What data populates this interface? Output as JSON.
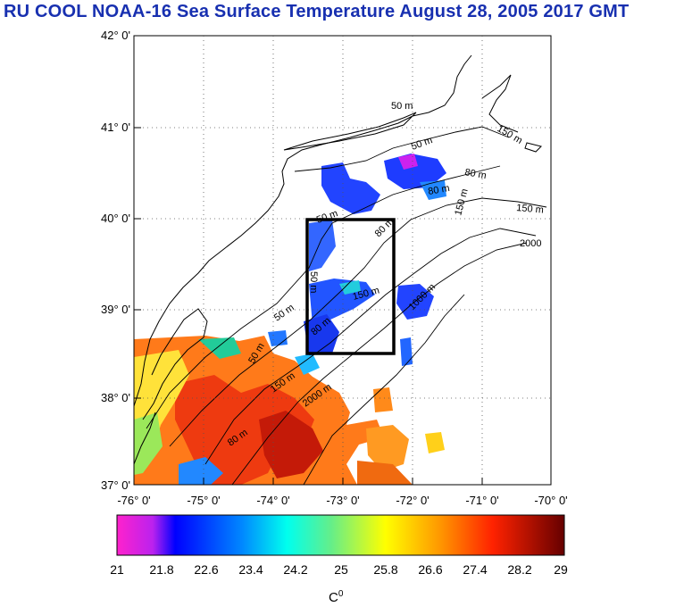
{
  "title": "RU COOL  NOAA-16 Sea Surface Temperature August 28, 2005 2017 GMT",
  "lat_labels": [
    "42° 0'",
    "41° 0'",
    "40° 0'",
    "39° 0'",
    "38° 0'",
    "37° 0'"
  ],
  "lon_labels": [
    "-76° 0'",
    "-75° 0'",
    "-74° 0'",
    "-73° 0'",
    "-72° 0'",
    "-71° 0'",
    "-70° 0'"
  ],
  "contour_labels": {
    "c50a": "50 m",
    "c50b": "50 m",
    "c80a": "80 m",
    "c80b": "80 m",
    "c150a": "150 m",
    "c150b": "150 m",
    "c2000": "2000",
    "c50c": "50 m",
    "c80c": "80 m",
    "c150c": "150 m",
    "c1000": "1000 m",
    "c50d": "50 m",
    "c50e": "50 m",
    "c80d": "80 m",
    "c150d": "150 m",
    "c2000b": "2000 m",
    "c80e": "80 m",
    "c50f": "50 m",
    "c150e": "150 m"
  },
  "colorbar": {
    "ticks": [
      "21",
      "21.8",
      "22.6",
      "23.4",
      "24.2",
      "25",
      "25.8",
      "26.6",
      "27.4",
      "28.2",
      "29"
    ],
    "unit": "C",
    "unit_sup": "0"
  },
  "colors": {
    "title": "#1830b0",
    "colorbar_stops": [
      "#ff22cc",
      "#0000ff",
      "#00aaff",
      "#00ffee",
      "#88ee66",
      "#ffff00",
      "#ff9900",
      "#ff3300",
      "#cc0000",
      "#770000"
    ]
  }
}
